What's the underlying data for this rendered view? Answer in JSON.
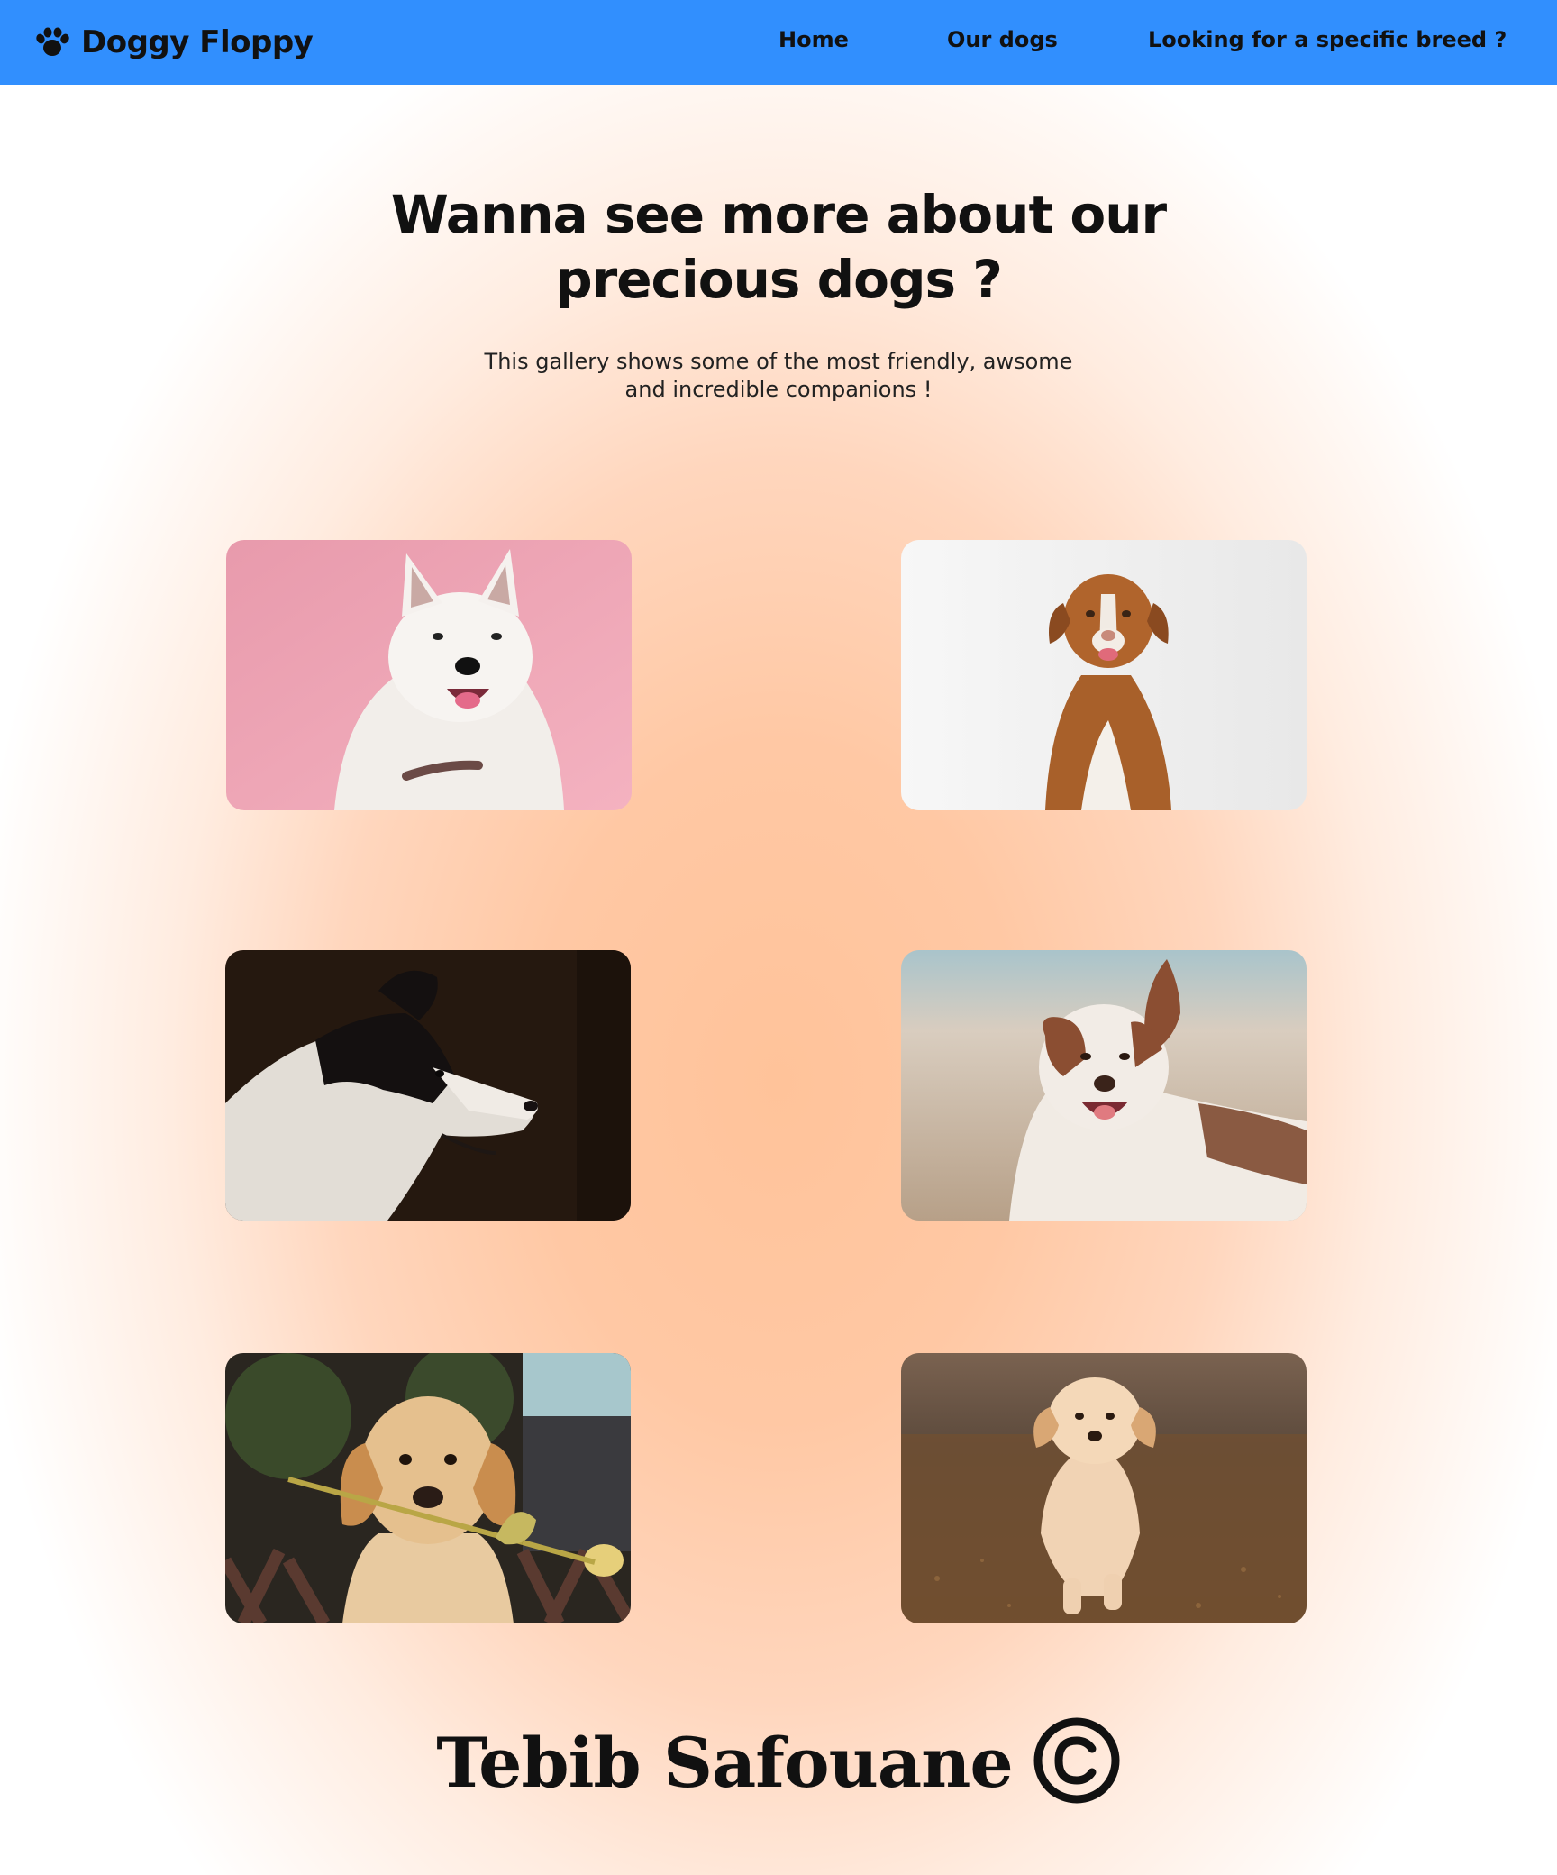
{
  "colors": {
    "navbar": "#318ffe",
    "glow": "#ffc39a",
    "text": "#111111"
  },
  "navbar": {
    "brand": {
      "icon": "paw-icon",
      "label": "Doggy Floppy"
    },
    "links": [
      {
        "label": "Home"
      },
      {
        "label": "Our dogs"
      },
      {
        "label": "Looking for a specific breed ?"
      }
    ]
  },
  "hero": {
    "title": "Wanna see more about our precious dogs ?",
    "subtitle": "This gallery shows some of the most friendly, awsome and incredible companions !"
  },
  "gallery": {
    "photos": [
      {
        "subject": "white-samoyed-pink-background"
      },
      {
        "subject": "tan-retriever-sitting-white-background"
      },
      {
        "subject": "black-white-collie-profile-dark-background"
      },
      {
        "subject": "australian-shepherd-outdoors"
      },
      {
        "subject": "golden-puppy-with-tulip"
      },
      {
        "subject": "golden-puppy-running-field"
      }
    ]
  },
  "footer": {
    "author": "Tebib Safouane",
    "icon": "copyright-icon"
  }
}
